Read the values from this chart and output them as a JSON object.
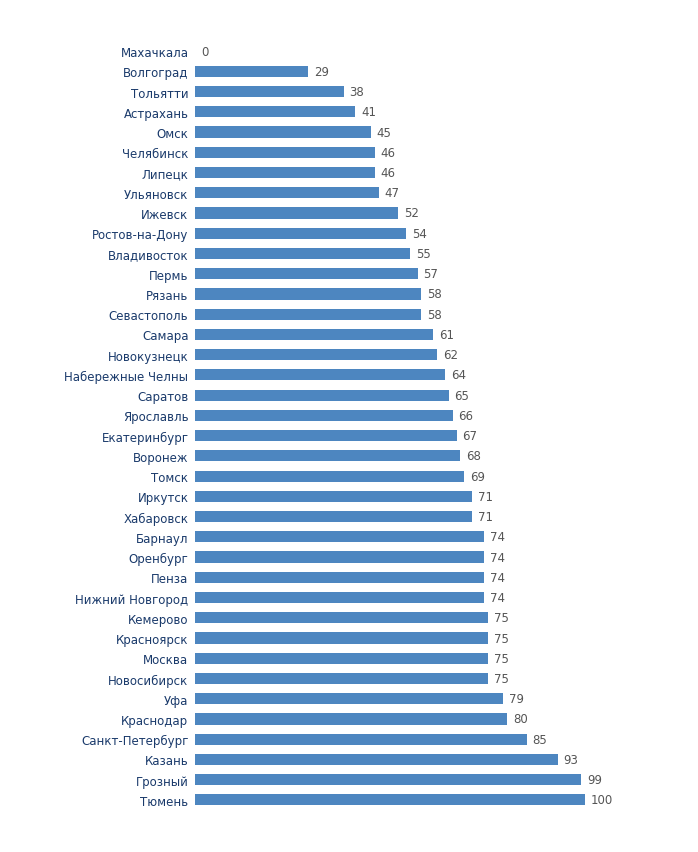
{
  "cities": [
    "Махачкала",
    "Волгоград",
    "Тольятти",
    "Астрахань",
    "Омск",
    "Челябинск",
    "Липецк",
    "Ульяновск",
    "Ижевск",
    "Ростов-на-Дону",
    "Владивосток",
    "Пермь",
    "Рязань",
    "Севастополь",
    "Самара",
    "Новокузнецк",
    "Набережные Челны",
    "Саратов",
    "Ярославль",
    "Екатеринбург",
    "Воронеж",
    "Томск",
    "Иркутск",
    "Хабаровск",
    "Барнаул",
    "Оренбург",
    "Пенза",
    "Нижний Новгород",
    "Кемерово",
    "Красноярск",
    "Москва",
    "Новосибирск",
    "Уфа",
    "Краснодар",
    "Санкт-Петербург",
    "Казань",
    "Грозный",
    "Тюмень"
  ],
  "values": [
    0,
    29,
    38,
    41,
    45,
    46,
    46,
    47,
    52,
    54,
    55,
    57,
    58,
    58,
    61,
    62,
    64,
    65,
    66,
    67,
    68,
    69,
    71,
    71,
    74,
    74,
    74,
    74,
    75,
    75,
    75,
    75,
    79,
    80,
    85,
    93,
    99,
    100
  ],
  "bar_color": "#4d86c0",
  "text_color": "#1a3a6b",
  "value_color": "#555555",
  "background_color": "#ffffff",
  "bar_height": 0.55,
  "xlim": [
    0,
    120
  ],
  "fontsize_labels": 8.5,
  "fontsize_values": 8.5
}
